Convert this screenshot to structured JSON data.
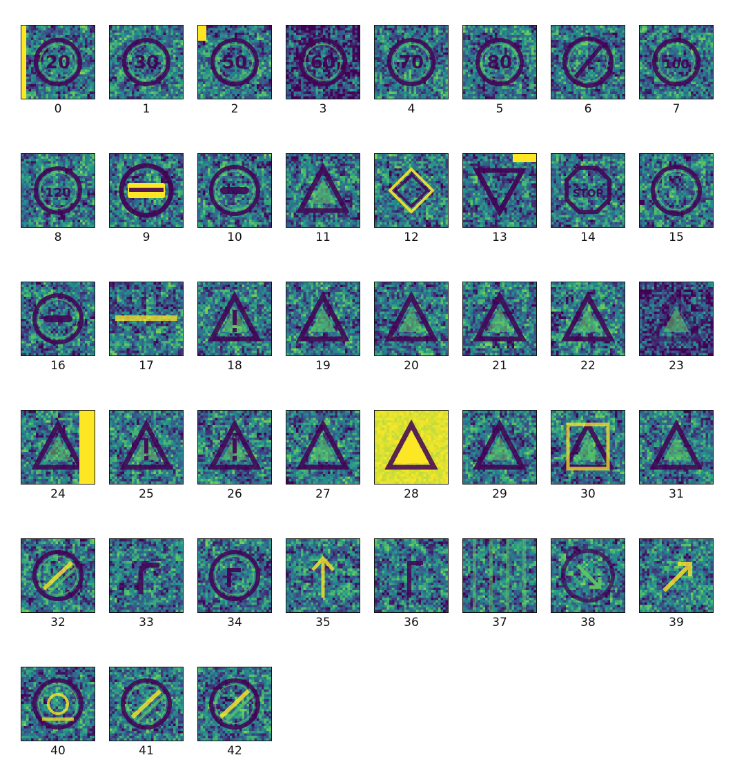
{
  "chart_data": {
    "type": "heatmap",
    "title": "",
    "colormap": "viridis",
    "colors": {
      "low": "#440154",
      "mid_low": "#3b528b",
      "mid": "#21918c",
      "mid_high": "#5ec962",
      "high": "#fde725"
    },
    "panels": [
      {
        "label": "0",
        "motif": "circle-number",
        "text": "20",
        "bright_edge": "left"
      },
      {
        "label": "1",
        "motif": "circle-number",
        "text": "30"
      },
      {
        "label": "2",
        "motif": "circle-number",
        "text": "50",
        "bright_edge": "top-left"
      },
      {
        "label": "3",
        "motif": "circle-number",
        "text": "60"
      },
      {
        "label": "4",
        "motif": "circle-number",
        "text": "70"
      },
      {
        "label": "5",
        "motif": "circle-number",
        "text": "80"
      },
      {
        "label": "6",
        "motif": "circle-slash"
      },
      {
        "label": "7",
        "motif": "circle-number",
        "text": "100"
      },
      {
        "label": "8",
        "motif": "circle-number",
        "text": "120"
      },
      {
        "label": "9",
        "motif": "no-entry-bright"
      },
      {
        "label": "10",
        "motif": "circle-bar"
      },
      {
        "label": "11",
        "motif": "triangle"
      },
      {
        "label": "12",
        "motif": "diamond"
      },
      {
        "label": "13",
        "motif": "inverted-triangle",
        "bright_edge": "top-right"
      },
      {
        "label": "14",
        "motif": "octagon-stop",
        "text": "STOP"
      },
      {
        "label": "15",
        "motif": "circle-empty"
      },
      {
        "label": "16",
        "motif": "circle-bar"
      },
      {
        "label": "17",
        "motif": "horizontal-bar"
      },
      {
        "label": "18",
        "motif": "triangle-exclaim"
      },
      {
        "label": "19",
        "motif": "triangle"
      },
      {
        "label": "20",
        "motif": "triangle-small"
      },
      {
        "label": "21",
        "motif": "triangle"
      },
      {
        "label": "22",
        "motif": "triangle"
      },
      {
        "label": "23",
        "motif": "triangle-faint"
      },
      {
        "label": "24",
        "motif": "triangle",
        "bright_edge": "right"
      },
      {
        "label": "25",
        "motif": "triangle-exclaim"
      },
      {
        "label": "26",
        "motif": "triangle-exclaim"
      },
      {
        "label": "27",
        "motif": "triangle"
      },
      {
        "label": "28",
        "motif": "bright-triangle"
      },
      {
        "label": "29",
        "motif": "triangle"
      },
      {
        "label": "30",
        "motif": "triangle-square"
      },
      {
        "label": "31",
        "motif": "triangle"
      },
      {
        "label": "32",
        "motif": "circle-diagonal"
      },
      {
        "label": "33",
        "motif": "arrow-turn"
      },
      {
        "label": "34",
        "motif": "circle-arrow"
      },
      {
        "label": "35",
        "motif": "arrow-up"
      },
      {
        "label": "36",
        "motif": "arrow-up-right"
      },
      {
        "label": "37",
        "motif": "vertical-stripes"
      },
      {
        "label": "38",
        "motif": "arrow-diagonal"
      },
      {
        "label": "39",
        "motif": "arrow-diagonal-up"
      },
      {
        "label": "40",
        "motif": "roundabout"
      },
      {
        "label": "41",
        "motif": "circle-diagonal"
      },
      {
        "label": "42",
        "motif": "circle-diagonal"
      }
    ]
  }
}
